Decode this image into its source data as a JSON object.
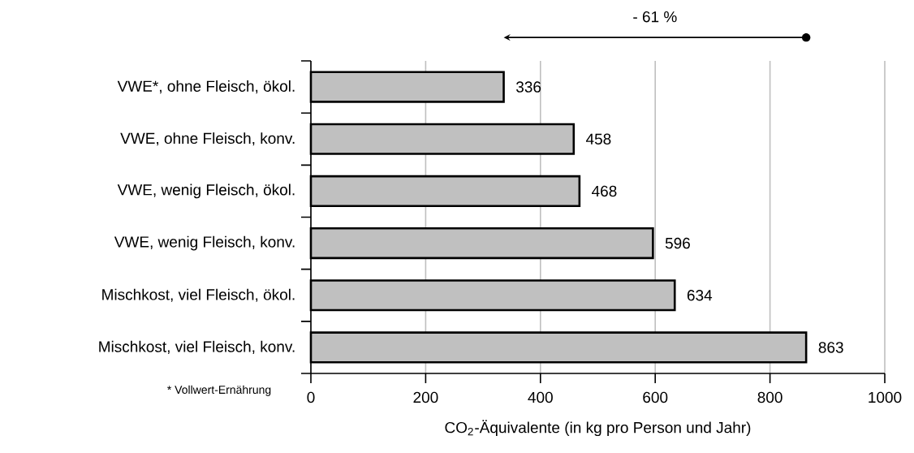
{
  "chart_data": {
    "type": "bar",
    "orientation": "horizontal",
    "categories": [
      "VWE*, ohne Fleisch, ökol.",
      "VWE, ohne Fleisch, konv.",
      "VWE, wenig Fleisch, ökol.",
      "VWE, wenig Fleisch, konv.",
      "Mischkost, viel Fleisch, ökol.",
      "Mischkost, viel Fleisch, konv."
    ],
    "values": [
      336,
      458,
      468,
      596,
      634,
      863
    ],
    "color": "#c0c0c0",
    "data_labels": true,
    "xlim": [
      0,
      1000
    ],
    "xticks": [
      0,
      200,
      400,
      600,
      800,
      1000
    ],
    "grid": "x",
    "xlabel": "CO$_{2}$-Äquivalente (in kg pro Person und Jahr)",
    "annotations": [
      "- 61 %",
      "* Vollwert-Ernährung"
    ]
  }
}
